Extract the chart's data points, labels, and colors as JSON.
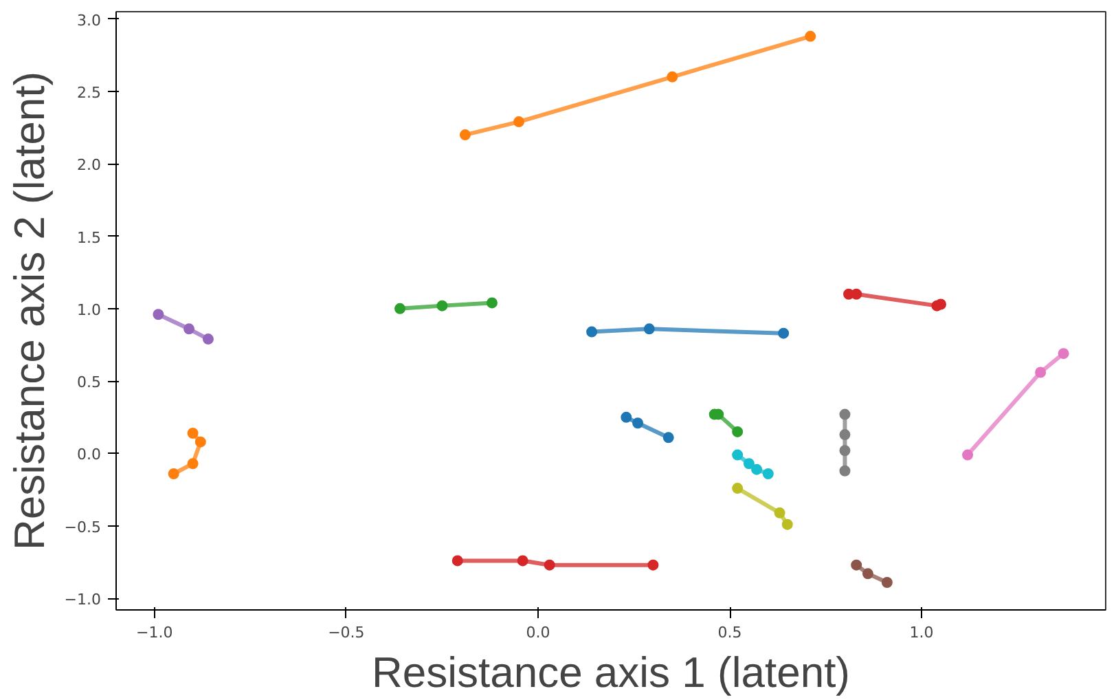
{
  "chart_data": {
    "type": "line",
    "xlabel": "Resistance axis 1 (latent)",
    "ylabel": "Resistance axis 2 (latent)",
    "xlim": [
      -1.1,
      1.48
    ],
    "ylim": [
      -1.08,
      3.05
    ],
    "xticks": [
      {
        "value": -1.0,
        "label": "−1.0"
      },
      {
        "value": -0.5,
        "label": "−0.5"
      },
      {
        "value": 0,
        "label": "0.0"
      },
      {
        "value": 0.5,
        "label": "0.5"
      },
      {
        "value": 1.0,
        "label": "1.0"
      }
    ],
    "yticks": [
      {
        "value": -1.0,
        "label": "−1.0"
      },
      {
        "value": -0.5,
        "label": "−0.5"
      },
      {
        "value": 0,
        "label": "0.0"
      },
      {
        "value": 0.5,
        "label": "0.5"
      },
      {
        "value": 1.0,
        "label": "1.0"
      },
      {
        "value": 1.5,
        "label": "1.5"
      },
      {
        "value": 2.0,
        "label": "2.0"
      },
      {
        "value": 2.5,
        "label": "2.5"
      },
      {
        "value": 3.0,
        "label": "3.0"
      }
    ],
    "grid": false,
    "marker": "circle",
    "line_style": "solid",
    "series": [
      {
        "color": "#1f77b4",
        "x": [
          0.14,
          0.29,
          0.64
        ],
        "values": [
          0.84,
          0.86,
          0.83
        ]
      },
      {
        "color": "#ff7f0e",
        "x": [
          -0.19,
          -0.05,
          0.35,
          0.71
        ],
        "values": [
          2.2,
          2.29,
          2.6,
          2.88
        ]
      },
      {
        "color": "#2ca02c",
        "x": [
          -0.36,
          -0.25,
          -0.12
        ],
        "values": [
          1.0,
          1.02,
          1.04
        ]
      },
      {
        "color": "#d62728",
        "x": [
          -0.21,
          -0.04,
          0.03,
          0.3
        ],
        "values": [
          -0.74,
          -0.74,
          -0.77,
          -0.77
        ]
      },
      {
        "color": "#9467bd",
        "x": [
          -0.99,
          -0.91,
          -0.86
        ],
        "values": [
          0.96,
          0.86,
          0.79
        ]
      },
      {
        "color": "#8c564b",
        "x": [
          0.83,
          0.86,
          0.91
        ],
        "values": [
          -0.77,
          -0.83,
          -0.89
        ]
      },
      {
        "color": "#e377c2",
        "x": [
          1.37,
          1.31,
          1.12
        ],
        "values": [
          0.69,
          0.56,
          -0.01
        ]
      },
      {
        "color": "#7f7f7f",
        "x": [
          0.8,
          0.8,
          0.8,
          0.8
        ],
        "values": [
          0.27,
          0.13,
          0.02,
          -0.12
        ]
      },
      {
        "color": "#bcbd22",
        "x": [
          0.52,
          0.63,
          0.65
        ],
        "values": [
          -0.24,
          -0.41,
          -0.49
        ]
      },
      {
        "color": "#17becf",
        "x": [
          0.52,
          0.55,
          0.57,
          0.6
        ],
        "values": [
          -0.01,
          -0.07,
          -0.11,
          -0.14
        ]
      },
      {
        "color": "#1f77b4",
        "x": [
          0.23,
          0.26,
          0.34
        ],
        "values": [
          0.25,
          0.21,
          0.11
        ]
      },
      {
        "color": "#ff7f0e",
        "x": [
          -0.95,
          -0.9,
          -0.88,
          -0.9
        ],
        "values": [
          -0.14,
          -0.07,
          0.08,
          0.14
        ]
      },
      {
        "color": "#2ca02c",
        "x": [
          0.46,
          0.47,
          0.52
        ],
        "values": [
          0.27,
          0.27,
          0.15
        ]
      },
      {
        "color": "#d62728",
        "x": [
          0.81,
          0.83,
          1.04,
          1.05
        ],
        "values": [
          1.1,
          1.1,
          1.02,
          1.03
        ]
      }
    ]
  }
}
